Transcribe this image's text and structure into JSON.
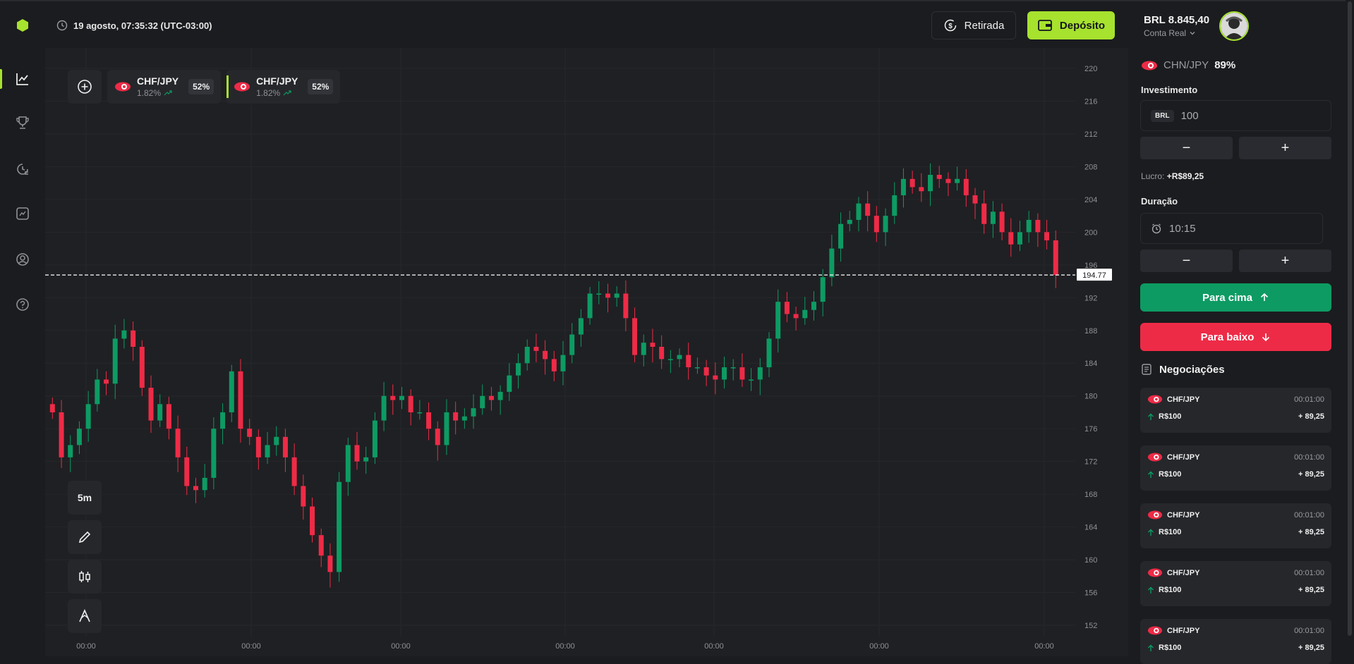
{
  "header": {
    "datetime": "19 agosto, 07:35:32 (UTC-03:00)",
    "withdraw_label": "Retirada",
    "deposit_label": "Depósito",
    "balance": "BRL 8.845,40",
    "account_type": "Conta Real"
  },
  "sidebar": {
    "items": [
      "chart-icon",
      "trophy-icon",
      "history-icon",
      "analytics-icon",
      "profile-icon",
      "help-icon"
    ]
  },
  "asset_tabs": [
    {
      "name": "CHF/JPY",
      "change": "1.82%",
      "payout": "52%"
    },
    {
      "name": "CHF/JPY",
      "change": "1.82%",
      "payout": "52%"
    }
  ],
  "tools": {
    "timeframe": "5m"
  },
  "chart_data": {
    "type": "candlestick",
    "current_price": "194.77",
    "y_ticks": [
      "220",
      "216",
      "212",
      "208",
      "204",
      "200",
      "196",
      "192",
      "188",
      "184",
      "180",
      "176",
      "172",
      "168",
      "164",
      "160",
      "156",
      "152"
    ],
    "x_ticks": [
      "00:00",
      "00:00",
      "00:00",
      "00:00",
      "00:00",
      "00:00",
      "00:00"
    ],
    "ylim": [
      150,
      222
    ],
    "up_color": "#0d9b63",
    "down_color": "#ee2b47",
    "closes": [
      178,
      172.5,
      174,
      176,
      179,
      182,
      181.5,
      187,
      188,
      186,
      181,
      177,
      179,
      176,
      172.5,
      169,
      168.5,
      170,
      176,
      178,
      183,
      176,
      175,
      172.5,
      174,
      175,
      172.5,
      169,
      166.5,
      163,
      160.5,
      158.5,
      169.5,
      174,
      172,
      172.5,
      177,
      180,
      179.5,
      180,
      178,
      178,
      176,
      174,
      178,
      177,
      177.5,
      178.5,
      180,
      179.5,
      180.5,
      182.5,
      184,
      186,
      185.5,
      184.5,
      183,
      185,
      187.5,
      189.5,
      192.5,
      192.5,
      192,
      192.5,
      189.5,
      185,
      186.5,
      186,
      184.5,
      184.5,
      185,
      183.5,
      183.5,
      182.5,
      182,
      183.5,
      183.5,
      182,
      182,
      183.5,
      187,
      191.5,
      190,
      189.5,
      190.5,
      191.5,
      194.5,
      198,
      201,
      201.5,
      203.5,
      202,
      200,
      202,
      204.5,
      206.5,
      205.5,
      205,
      207,
      206.5,
      206,
      206.5,
      204.5,
      203.5,
      201,
      202.5,
      200,
      198.5,
      200,
      201.5,
      200,
      199,
      194.77
    ]
  },
  "panel": {
    "pair_name": "CHN/JPY",
    "pair_payout": "89%",
    "investment_label": "Investimento",
    "currency": "BRL",
    "investment_value": "100",
    "minus": "−",
    "plus": "+",
    "profit_label": "Lucro:",
    "profit_value": "+R$89,25",
    "duration_label": "Duração",
    "duration_value": "10:15",
    "up_label": "Para cima",
    "down_label": "Para baixo",
    "trades_title": "Negociações"
  },
  "trades": [
    {
      "pair": "CHF/JPY",
      "time": "00:01:00",
      "amount": "R$100",
      "gain": "+ 89,25"
    },
    {
      "pair": "CHF/JPY",
      "time": "00:01:00",
      "amount": "R$100",
      "gain": "+ 89,25"
    },
    {
      "pair": "CHF/JPY",
      "time": "00:01:00",
      "amount": "R$100",
      "gain": "+ 89,25"
    },
    {
      "pair": "CHF/JPY",
      "time": "00:01:00",
      "amount": "R$100",
      "gain": "+ 89,25"
    },
    {
      "pair": "CHF/JPY",
      "time": "00:01:00",
      "amount": "R$100",
      "gain": "+ 89,25"
    }
  ]
}
